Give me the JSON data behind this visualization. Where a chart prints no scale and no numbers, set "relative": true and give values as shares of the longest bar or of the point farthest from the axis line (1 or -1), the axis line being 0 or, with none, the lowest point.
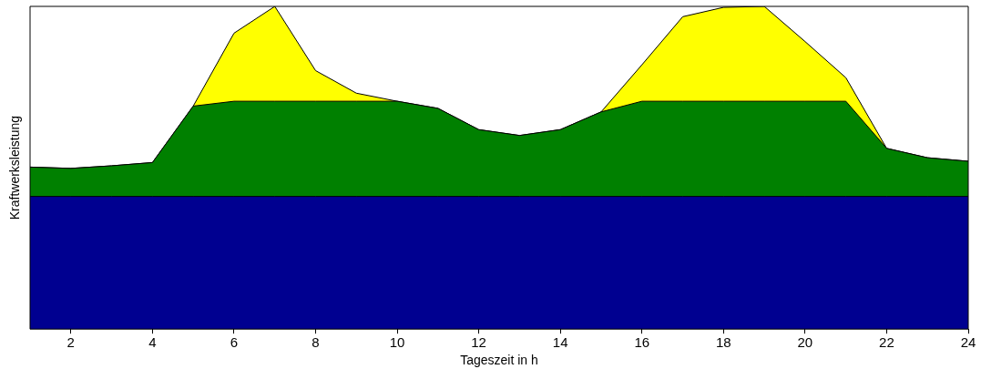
{
  "chart_data": {
    "type": "area",
    "relative": true,
    "xlabel": "Tageszeit in h",
    "ylabel": "Kraftwerksleistung",
    "x": [
      1,
      2,
      3,
      4,
      5,
      6,
      7,
      8,
      9,
      10,
      11,
      12,
      13,
      14,
      15,
      16,
      17,
      18,
      19,
      20,
      21,
      22,
      23,
      24
    ],
    "xlim": [
      1,
      24
    ],
    "xticks": [
      2,
      4,
      6,
      8,
      10,
      12,
      14,
      16,
      18,
      20,
      22,
      24
    ],
    "grid": false,
    "legend": false,
    "series": [
      {
        "color": "#000090",
        "values": [
          0.411,
          0.411,
          0.411,
          0.411,
          0.411,
          0.411,
          0.411,
          0.411,
          0.411,
          0.411,
          0.411,
          0.411,
          0.411,
          0.411,
          0.411,
          0.411,
          0.411,
          0.411,
          0.411,
          0.411,
          0.411,
          0.411,
          0.411,
          0.411
        ]
      },
      {
        "color": "#008000",
        "values": [
          0.502,
          0.498,
          0.506,
          0.516,
          0.691,
          0.706,
          0.706,
          0.706,
          0.706,
          0.706,
          0.684,
          0.618,
          0.6,
          0.618,
          0.673,
          0.706,
          0.706,
          0.706,
          0.706,
          0.706,
          0.706,
          0.56,
          0.531,
          0.52
        ]
      },
      {
        "color": "#ffff00",
        "values": [
          0.502,
          0.498,
          0.506,
          0.516,
          0.691,
          0.917,
          1.0,
          0.801,
          0.731,
          0.706,
          0.684,
          0.618,
          0.6,
          0.618,
          0.673,
          0.819,
          0.968,
          0.997,
          1.0,
          0.891,
          0.779,
          0.56,
          0.531,
          0.52
        ]
      }
    ]
  }
}
